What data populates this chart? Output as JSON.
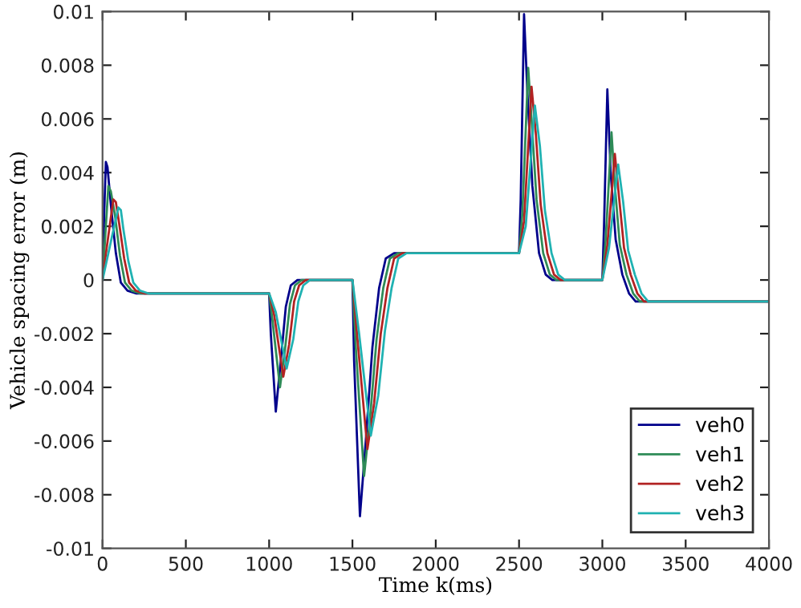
{
  "chart_data": {
    "type": "line",
    "xlabel": "Time k(ms)",
    "ylabel": "Vehicle spacing error (m)",
    "xlim": [
      0,
      4000
    ],
    "xticks": [
      0,
      500,
      1000,
      1500,
      2000,
      2500,
      3000,
      3500,
      4000
    ],
    "ylim": [
      -0.01,
      0.01
    ],
    "yticks": [
      -0.01,
      -0.008,
      -0.006,
      -0.004,
      -0.002,
      0,
      0.002,
      0.004,
      0.006,
      0.008,
      0.01
    ],
    "grid": false,
    "legend": "bottom right",
    "marker": "none",
    "line_style": "solid",
    "series": [
      {
        "name": "veh0",
        "color": "#00008b",
        "x": [
          0,
          10,
          20,
          30,
          50,
          80,
          110,
          150,
          200,
          1000,
          1010,
          1040,
          1070,
          1100,
          1130,
          1170,
          1500,
          1510,
          1545,
          1580,
          1620,
          1660,
          1700,
          1750,
          2500,
          2510,
          2530,
          2550,
          2580,
          2620,
          2660,
          2700,
          2750,
          3000,
          3010,
          3030,
          3050,
          3080,
          3120,
          3160,
          3200,
          3250,
          4000
        ],
        "values": [
          0,
          0.0025,
          0.0044,
          0.0042,
          0.0028,
          0.001,
          -0.0001,
          -0.0004,
          -0.0005,
          -0.0005,
          -0.002,
          -0.0049,
          -0.003,
          -0.001,
          -0.0002,
          0,
          0,
          -0.003,
          -0.0088,
          -0.006,
          -0.0025,
          -0.0003,
          0.0008,
          0.001,
          0.001,
          0.003,
          0.0099,
          0.007,
          0.0035,
          0.001,
          0.0002,
          0,
          0,
          0,
          0.002,
          0.0071,
          0.004,
          0.0015,
          0.0002,
          -0.0005,
          -0.0008,
          -0.0008,
          -0.0008
        ]
      },
      {
        "name": "veh1",
        "color": "#2e8b57",
        "x": [
          0,
          15,
          35,
          50,
          75,
          105,
          135,
          175,
          225,
          1000,
          1020,
          1065,
          1095,
          1125,
          1155,
          1195,
          1500,
          1520,
          1570,
          1605,
          1645,
          1685,
          1725,
          1775,
          2500,
          2520,
          2555,
          2575,
          2605,
          2645,
          2685,
          2725,
          2775,
          3000,
          3020,
          3055,
          3075,
          3105,
          3145,
          3185,
          3225,
          3275,
          4000
        ],
        "values": [
          0,
          0.0015,
          0.0035,
          0.0033,
          0.0024,
          0.0009,
          -0.0001,
          -0.0004,
          -0.0005,
          -0.0005,
          -0.0015,
          -0.004,
          -0.0026,
          -0.0009,
          -0.0002,
          0,
          0,
          -0.0025,
          -0.0073,
          -0.0052,
          -0.0022,
          -0.0003,
          0.0008,
          0.001,
          0.001,
          0.0025,
          0.0079,
          0.006,
          0.003,
          0.001,
          0.0002,
          0,
          0,
          0,
          0.0015,
          0.0055,
          0.0035,
          0.0013,
          0.0002,
          -0.0005,
          -0.0008,
          -0.0008,
          -0.0008
        ]
      },
      {
        "name": "veh2",
        "color": "#b22222",
        "x": [
          0,
          25,
          65,
          80,
          100,
          130,
          160,
          200,
          250,
          1000,
          1030,
          1085,
          1120,
          1150,
          1180,
          1220,
          1500,
          1530,
          1590,
          1630,
          1670,
          1710,
          1750,
          1800,
          2500,
          2530,
          2575,
          2600,
          2630,
          2670,
          2710,
          2750,
          2800,
          3000,
          3030,
          3075,
          3100,
          3130,
          3170,
          3210,
          3250,
          3300,
          4000
        ],
        "values": [
          0,
          0.0012,
          0.003,
          0.0029,
          0.0021,
          0.0008,
          -0.0001,
          -0.0004,
          -0.0005,
          -0.0005,
          -0.0013,
          -0.0036,
          -0.0024,
          -0.0008,
          -0.0002,
          0,
          0,
          -0.0022,
          -0.0063,
          -0.0046,
          -0.002,
          -0.0003,
          0.0008,
          0.001,
          0.001,
          0.0022,
          0.0072,
          0.0055,
          0.0028,
          0.001,
          0.0002,
          0,
          0,
          0,
          0.0013,
          0.0047,
          0.0031,
          0.0012,
          0.0002,
          -0.0005,
          -0.0008,
          -0.0008,
          -0.0008
        ]
      },
      {
        "name": "veh3",
        "color": "#20b2b2",
        "x": [
          0,
          35,
          95,
          110,
          125,
          155,
          185,
          225,
          275,
          1000,
          1040,
          1105,
          1145,
          1175,
          1205,
          1245,
          1500,
          1540,
          1610,
          1655,
          1695,
          1735,
          1775,
          1825,
          2500,
          2540,
          2595,
          2625,
          2655,
          2695,
          2735,
          2775,
          2825,
          3000,
          3040,
          3095,
          3125,
          3155,
          3195,
          3235,
          3275,
          3325,
          4000
        ],
        "values": [
          0,
          0.001,
          0.0027,
          0.0026,
          0.0019,
          0.0007,
          -0.0001,
          -0.0004,
          -0.0005,
          -0.0005,
          -0.0012,
          -0.0033,
          -0.0022,
          -0.0008,
          -0.0002,
          0,
          0,
          -0.002,
          -0.0058,
          -0.0043,
          -0.0019,
          -0.0003,
          0.0008,
          0.001,
          0.001,
          0.002,
          0.0065,
          0.005,
          0.0026,
          0.001,
          0.0002,
          0,
          0,
          0,
          0.0012,
          0.0043,
          0.0029,
          0.0011,
          0.0002,
          -0.0005,
          -0.0008,
          -0.0008,
          -0.0008
        ]
      }
    ]
  }
}
